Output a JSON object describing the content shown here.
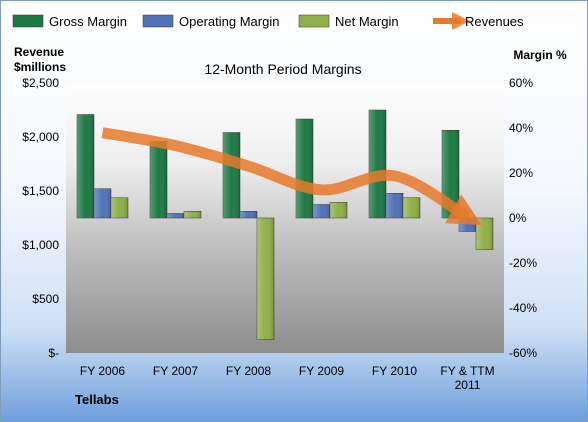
{
  "chart_data": {
    "type": "bar",
    "title": "12-Month Period Margins",
    "company": "Tellabs",
    "left_axis": {
      "label_line1": "Revenue",
      "label_line2": "$millions",
      "range": [
        0,
        2500
      ],
      "ticks": [
        0,
        500,
        1000,
        1500,
        2000,
        2500
      ],
      "tick_labels": [
        "$-",
        "$500",
        "$1,000",
        "$1,500",
        "$2,000",
        "$2,500"
      ]
    },
    "right_axis": {
      "label": "Margin %",
      "range": [
        -60,
        60
      ],
      "ticks": [
        -60,
        -40,
        -20,
        0,
        20,
        40,
        60
      ],
      "tick_labels": [
        "-60%",
        "-40%",
        "-20%",
        "0%",
        "20%",
        "40%",
        "60%"
      ]
    },
    "categories": [
      "FY 2006",
      "FY 2007",
      "FY 2008",
      "FY 2009",
      "FY 2010",
      "FY & TTM 2011"
    ],
    "series": [
      {
        "name": "Gross Margin",
        "axis": "right",
        "color": "#1e7a45",
        "values": [
          46,
          34,
          38,
          44,
          48,
          39
        ]
      },
      {
        "name": "Operating Margin",
        "axis": "right",
        "color": "#4f72b8",
        "values": [
          13,
          2,
          3,
          6,
          11,
          -6
        ]
      },
      {
        "name": "Net Margin",
        "axis": "right",
        "color": "#8fb04a",
        "values": [
          9,
          3,
          -54,
          7,
          9,
          -14
        ]
      },
      {
        "name": "Revenues",
        "axis": "left",
        "type": "line",
        "color": "#e8792a",
        "values": [
          2040,
          1920,
          1730,
          1510,
          1640,
          1260
        ]
      }
    ],
    "legend_position": "top",
    "grid": false
  }
}
